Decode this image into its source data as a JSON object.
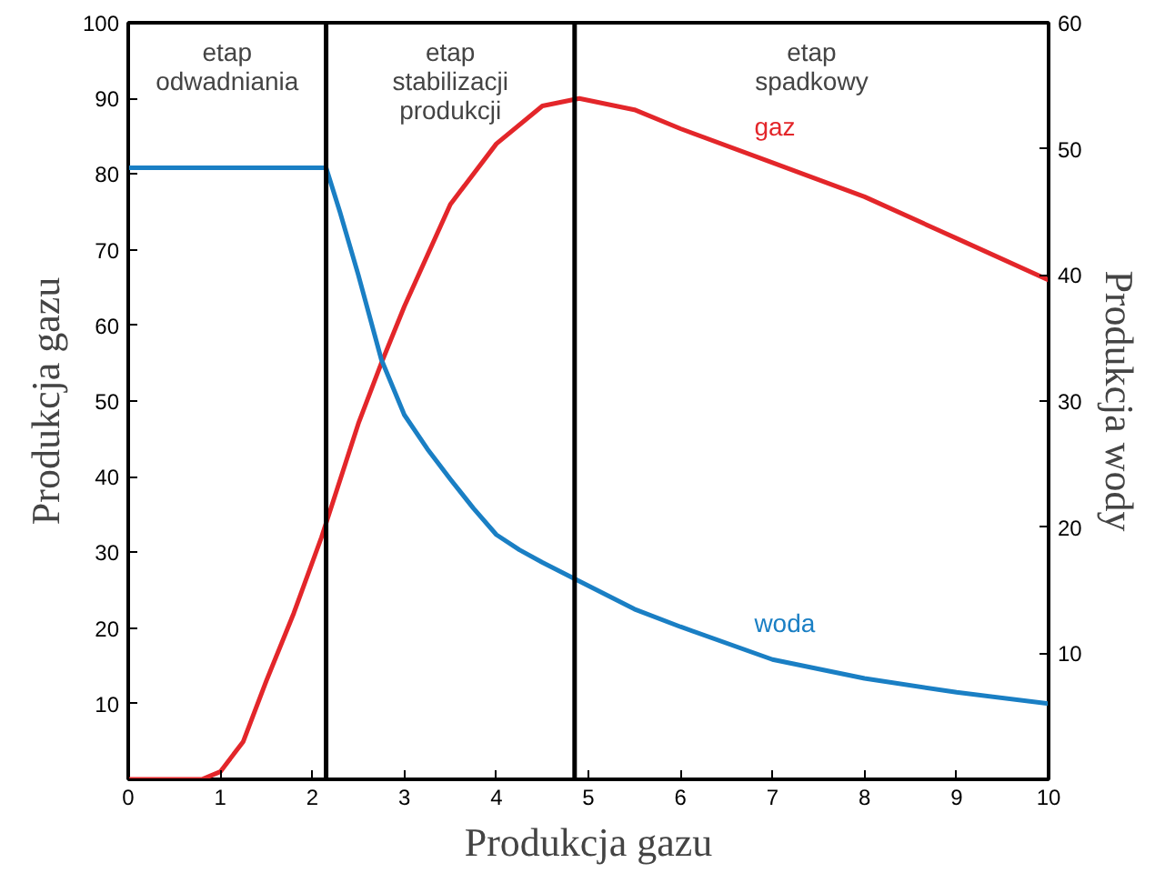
{
  "chart_data": {
    "type": "line",
    "xlabel": "Produkcja gazu",
    "ylabel": "Produkcja gazu",
    "y2label": "Produkcja wody",
    "xlim": [
      0,
      10
    ],
    "xticks": [
      0,
      1,
      2,
      3,
      4,
      5,
      6,
      7,
      8,
      9,
      10
    ],
    "ylim": [
      0,
      100
    ],
    "yticks": [
      10,
      20,
      30,
      40,
      50,
      60,
      70,
      80,
      90,
      100
    ],
    "y2lim": [
      0,
      60
    ],
    "y2ticks": [
      10,
      20,
      30,
      40,
      50,
      60
    ],
    "grid": false,
    "marker": "none",
    "line_style": "solid",
    "series": [
      {
        "name": "gaz",
        "color": "#e3262a",
        "x": [
          0,
          0.8,
          1,
          1.25,
          1.5,
          1.8,
          2.1,
          2.5,
          2.75,
          3,
          3.5,
          4,
          4.5,
          4.9,
          5.5,
          6,
          7,
          8,
          9,
          10
        ],
        "values": [
          0,
          0,
          1,
          5,
          13,
          22,
          32,
          47,
          55,
          62.5,
          76,
          84,
          89,
          90,
          88.5,
          86,
          81.5,
          77,
          71.5,
          66
        ]
      },
      {
        "name": "woda",
        "color": "#1a7fc4",
        "axis": "y2",
        "x": [
          0,
          1,
          2.15,
          2.3,
          2.5,
          2.75,
          3,
          3.25,
          3.5,
          3.75,
          4,
          4.25,
          4.5,
          4.85,
          5.5,
          6,
          7,
          8,
          9,
          10
        ],
        "values": [
          48.5,
          48.5,
          48.5,
          45,
          40,
          33.3,
          28.9,
          26.2,
          23.8,
          21.5,
          19.4,
          18.2,
          17.2,
          15.9,
          13.5,
          12.1,
          9.5,
          8,
          6.9,
          6
        ]
      }
    ],
    "ref_lines": [
      {
        "axis": "x",
        "value": 2.15,
        "color": "#000000"
      },
      {
        "axis": "x",
        "value": 4.85,
        "color": "#000000"
      }
    ],
    "annotations": [
      "etap\nodwadniania",
      "etap\nstabilizacji\nprodukcji",
      "etap\nspadkowy"
    ]
  }
}
